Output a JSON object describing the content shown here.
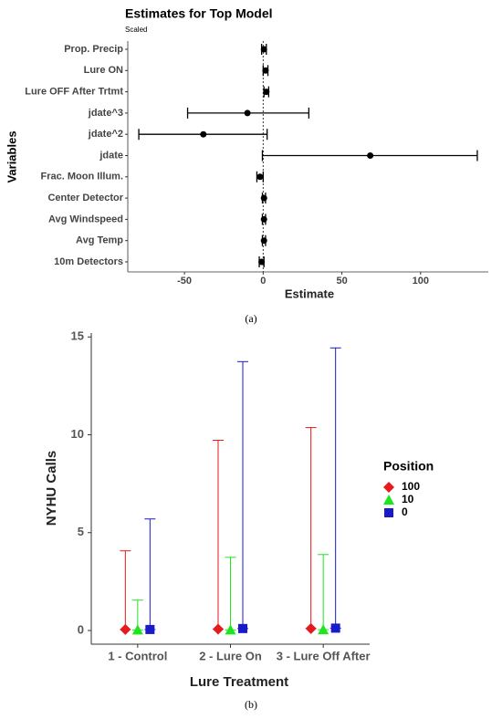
{
  "chart_data": [
    {
      "type": "forest",
      "title": "Estimates for Top Model",
      "subtitle": "Scaled",
      "x_label": "Estimate",
      "y_label": "Variables",
      "caption": "(a)",
      "categories": [
        "Prop. Precip",
        "Lure ON",
        "Lure OFF After Trtmt",
        "jdate^3",
        "jdate^2",
        "jdate",
        "Frac. Moon Illum.",
        "Center Detector",
        "Avg Windspeed",
        "Avg Temp",
        "10m Detectors"
      ],
      "values": [
        0.5,
        1.5,
        2,
        -10,
        -38,
        68,
        -2,
        0.5,
        0.5,
        0.5,
        -1
      ],
      "ci_low": [
        -1,
        0,
        0.5,
        -48,
        -79,
        -0.5,
        -4,
        -0.5,
        -0.5,
        -0.5,
        -2.5
      ],
      "ci_high": [
        2,
        3,
        3.5,
        29,
        2.5,
        136,
        0,
        1.5,
        1.5,
        1.5,
        0.5
      ],
      "color": "#000000",
      "xlim": [
        -86,
        143
      ],
      "xticks": [
        -50,
        0,
        50,
        100
      ],
      "grid": false
    },
    {
      "type": "errorbar",
      "x_label": "Lure Treatment",
      "y_label": "NYHU Calls",
      "caption": "(b)",
      "legend_title": "Position",
      "categories": [
        "1 - Control",
        "2 - Lure On",
        "3 - Lure Off After"
      ],
      "series": [
        {
          "name": "100",
          "color": "#e41a1c",
          "marker": "diamond",
          "values": [
            0.05,
            0.07,
            0.1
          ],
          "upper": [
            4.07,
            9.72,
            10.37
          ]
        },
        {
          "name": "10",
          "color": "#1ee61e",
          "marker": "triangle",
          "values": [
            0.03,
            0.03,
            0.04
          ],
          "upper": [
            1.55,
            3.74,
            3.88
          ]
        },
        {
          "name": "0",
          "color": "#1a1acd",
          "marker": "square",
          "values": [
            0.05,
            0.1,
            0.12
          ],
          "upper": [
            5.7,
            13.74,
            14.44
          ]
        }
      ],
      "ylim": [
        -0.7,
        15.2
      ],
      "yticks": [
        0,
        5,
        10,
        15
      ],
      "grid": false
    }
  ]
}
